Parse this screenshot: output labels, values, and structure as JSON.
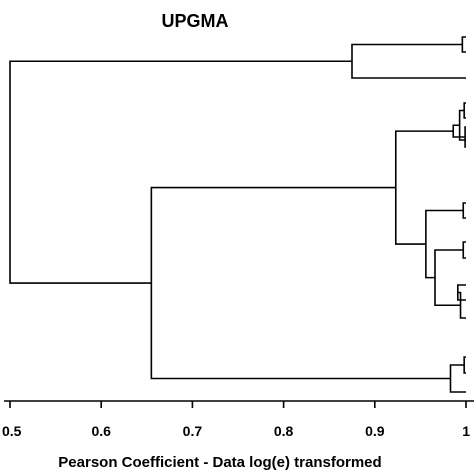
{
  "chart_data": {
    "type": "dendrogram",
    "title": "UPGMA",
    "xlabel": "Pearson Coefficient - Data log(e) transformed",
    "ylabel": "",
    "xlim": [
      0.5,
      1.0
    ],
    "ticks": [
      {
        "value": 0.5,
        "label": "0.5"
      },
      {
        "value": 0.6,
        "label": "0.6"
      },
      {
        "value": 0.7,
        "label": "0.7"
      },
      {
        "value": 0.8,
        "label": "0.8"
      },
      {
        "value": 0.9,
        "label": "0.9"
      },
      {
        "value": 1.0,
        "label": "1"
      }
    ],
    "leaf_count": 18,
    "merges": [
      {
        "id": "A",
        "similarity": 0.996,
        "children": [
          "L0",
          "L1"
        ]
      },
      {
        "id": "B",
        "similarity": 0.875,
        "children": [
          "A",
          "L2"
        ]
      },
      {
        "id": "C",
        "similarity": 0.998,
        "children": [
          "L3",
          "L4"
        ]
      },
      {
        "id": "D",
        "similarity": 0.993,
        "children": [
          "C",
          "L5"
        ]
      },
      {
        "id": "E",
        "similarity": 0.999,
        "children": [
          "L6",
          "L7"
        ]
      },
      {
        "id": "F",
        "similarity": 0.986,
        "children": [
          "D",
          "E"
        ]
      },
      {
        "id": "G",
        "similarity": 0.997,
        "children": [
          "L8",
          "L9"
        ]
      },
      {
        "id": "H",
        "similarity": 0.997,
        "children": [
          "L10",
          "L11"
        ]
      },
      {
        "id": "I",
        "similarity": 0.991,
        "children": [
          "L12",
          "L13"
        ]
      },
      {
        "id": "J",
        "similarity": 0.994,
        "children": [
          "I",
          "L14"
        ]
      },
      {
        "id": "K",
        "similarity": 0.966,
        "children": [
          "H",
          "J"
        ]
      },
      {
        "id": "M",
        "similarity": 0.956,
        "children": [
          "G",
          "K"
        ]
      },
      {
        "id": "N",
        "similarity": 0.923,
        "children": [
          "F",
          "M"
        ]
      },
      {
        "id": "O",
        "similarity": 0.998,
        "children": [
          "L15",
          "L16"
        ]
      },
      {
        "id": "P",
        "similarity": 0.983,
        "children": [
          "O",
          "L17"
        ]
      },
      {
        "id": "Q",
        "similarity": 0.655,
        "children": [
          "N",
          "P"
        ]
      },
      {
        "id": "R",
        "similarity": 0.5,
        "children": [
          "B",
          "Q"
        ]
      }
    ]
  }
}
